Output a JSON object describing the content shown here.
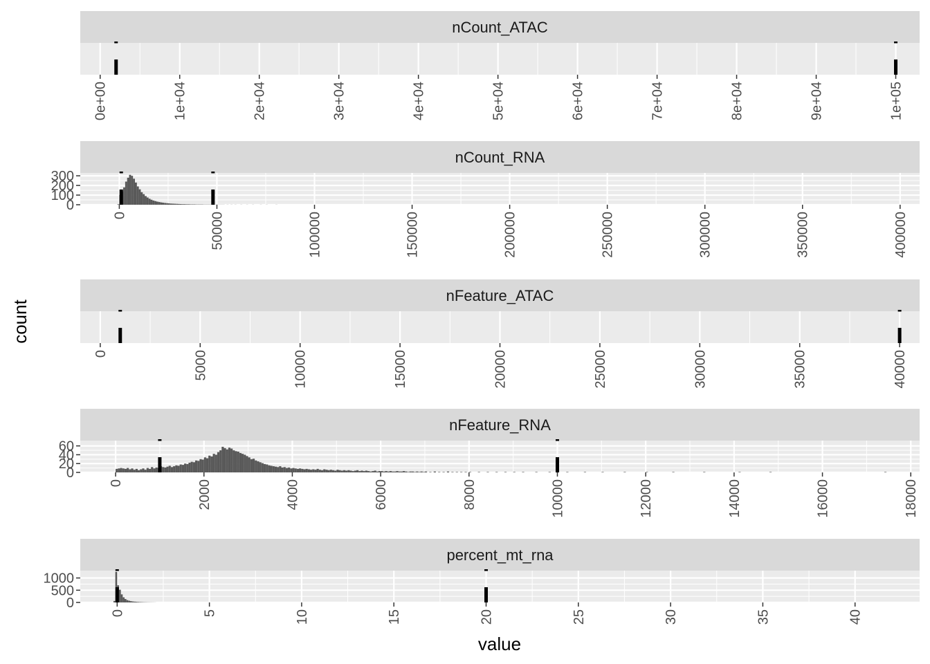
{
  "chart_data": {
    "type": "histogram",
    "xlabel": "value",
    "ylabel": "count",
    "layout": "facet_wrap, 1 column, free scales",
    "colors": {
      "panel": "#EBEBEB",
      "strip": "#D9D9D9",
      "grid": "#FFFFFF",
      "bar": "#595959",
      "threshold": "#000000",
      "text": "#4D4D4D"
    },
    "facets": [
      {
        "name": "nCount_ATAC",
        "xlim": [
          -2500,
          103000
        ],
        "ylim": [
          0,
          1
        ],
        "x_ticks": [
          0,
          10000,
          20000,
          30000,
          40000,
          50000,
          60000,
          70000,
          80000,
          90000,
          100000
        ],
        "x_tick_labels": [
          "0e+00",
          "1e+04",
          "2e+04",
          "3e+04",
          "4e+04",
          "5e+04",
          "6e+04",
          "7e+04",
          "8e+04",
          "9e+04",
          "1e+05"
        ],
        "y_ticks": [],
        "y_tick_labels": [],
        "thresholds": [
          2000,
          100000
        ],
        "bins": []
      },
      {
        "name": "nCount_RNA",
        "xlim": [
          -20000,
          410000
        ],
        "ylim": [
          0,
          330
        ],
        "x_ticks": [
          0,
          50000,
          100000,
          150000,
          200000,
          250000,
          300000,
          350000,
          400000
        ],
        "x_tick_labels": [
          "0",
          "50000",
          "100000",
          "150000",
          "200000",
          "250000",
          "300000",
          "350000",
          "400000"
        ],
        "y_ticks": [
          0,
          100,
          200,
          300
        ],
        "y_tick_labels": [
          "0",
          "100",
          "200",
          "300"
        ],
        "thresholds": [
          1000,
          48000
        ],
        "bin_width": 1000,
        "bins": [
          [
            -1000,
            5
          ],
          [
            0,
            100
          ],
          [
            1000,
            140
          ],
          [
            2000,
            180
          ],
          [
            3000,
            240
          ],
          [
            4000,
            280
          ],
          [
            5000,
            310
          ],
          [
            6000,
            300
          ],
          [
            7000,
            270
          ],
          [
            8000,
            230
          ],
          [
            9000,
            190
          ],
          [
            10000,
            160
          ],
          [
            11000,
            130
          ],
          [
            12000,
            110
          ],
          [
            13000,
            90
          ],
          [
            14000,
            75
          ],
          [
            15000,
            62
          ],
          [
            16000,
            52
          ],
          [
            17000,
            44
          ],
          [
            18000,
            38
          ],
          [
            19000,
            32
          ],
          [
            20000,
            28
          ],
          [
            21000,
            24
          ],
          [
            22000,
            21
          ],
          [
            23000,
            18
          ],
          [
            24000,
            16
          ],
          [
            25000,
            14
          ],
          [
            26000,
            12
          ],
          [
            27000,
            11
          ],
          [
            28000,
            10
          ],
          [
            29000,
            9
          ],
          [
            30000,
            8
          ],
          [
            31000,
            7
          ],
          [
            32000,
            6
          ],
          [
            33000,
            6
          ],
          [
            34000,
            5
          ],
          [
            35000,
            5
          ],
          [
            36000,
            4
          ],
          [
            37000,
            4
          ],
          [
            38000,
            4
          ],
          [
            39000,
            3
          ],
          [
            40000,
            3
          ],
          [
            41000,
            3
          ],
          [
            42000,
            3
          ],
          [
            43000,
            2
          ],
          [
            44000,
            2
          ],
          [
            45000,
            2
          ],
          [
            46000,
            2
          ],
          [
            47000,
            2
          ],
          [
            48000,
            2
          ],
          [
            49000,
            1
          ],
          [
            50000,
            1
          ],
          [
            51000,
            1
          ],
          [
            52000,
            1
          ],
          [
            53000,
            1
          ],
          [
            55000,
            1
          ],
          [
            57000,
            1
          ],
          [
            59000,
            1
          ],
          [
            62000,
            1
          ],
          [
            65000,
            1
          ],
          [
            68000,
            1
          ],
          [
            72000,
            1
          ],
          [
            75000,
            1
          ],
          [
            80000,
            1
          ]
        ]
      },
      {
        "name": "nFeature_ATAC",
        "xlim": [
          -1000,
          41000
        ],
        "ylim": [
          0,
          1
        ],
        "x_ticks": [
          0,
          5000,
          10000,
          15000,
          20000,
          25000,
          30000,
          35000,
          40000
        ],
        "x_tick_labels": [
          "0",
          "5000",
          "10000",
          "15000",
          "20000",
          "25000",
          "30000",
          "35000",
          "40000"
        ],
        "y_ticks": [],
        "y_tick_labels": [],
        "thresholds": [
          1000,
          40000
        ],
        "bins": []
      },
      {
        "name": "nFeature_RNA",
        "xlim": [
          -800,
          18200
        ],
        "ylim": [
          0,
          72
        ],
        "x_ticks": [
          0,
          2000,
          4000,
          6000,
          8000,
          10000,
          12000,
          14000,
          16000,
          18000
        ],
        "x_tick_labels": [
          "0",
          "2000",
          "4000",
          "6000",
          "8000",
          "10000",
          "12000",
          "14000",
          "16000",
          "18000"
        ],
        "y_ticks": [
          0,
          20,
          40,
          60
        ],
        "y_tick_labels": [
          "0",
          "20",
          "40",
          "60"
        ],
        "thresholds": [
          1000,
          10000
        ],
        "bin_width": 50,
        "bins": [
          [
            0,
            8
          ],
          [
            50,
            9
          ],
          [
            100,
            10
          ],
          [
            150,
            9
          ],
          [
            200,
            8
          ],
          [
            250,
            10
          ],
          [
            300,
            7
          ],
          [
            350,
            9
          ],
          [
            400,
            6
          ],
          [
            450,
            8
          ],
          [
            500,
            5
          ],
          [
            550,
            7
          ],
          [
            600,
            9
          ],
          [
            650,
            6
          ],
          [
            700,
            10
          ],
          [
            750,
            8
          ],
          [
            800,
            12
          ],
          [
            850,
            9
          ],
          [
            900,
            11
          ],
          [
            950,
            10
          ],
          [
            1000,
            14
          ],
          [
            1050,
            12
          ],
          [
            1100,
            11
          ],
          [
            1150,
            13
          ],
          [
            1200,
            15
          ],
          [
            1250,
            12
          ],
          [
            1300,
            14
          ],
          [
            1350,
            16
          ],
          [
            1400,
            15
          ],
          [
            1450,
            18
          ],
          [
            1500,
            17
          ],
          [
            1550,
            20
          ],
          [
            1600,
            19
          ],
          [
            1650,
            22
          ],
          [
            1700,
            24
          ],
          [
            1750,
            23
          ],
          [
            1800,
            27
          ],
          [
            1850,
            26
          ],
          [
            1900,
            30
          ],
          [
            1950,
            29
          ],
          [
            2000,
            34
          ],
          [
            2050,
            32
          ],
          [
            2100,
            38
          ],
          [
            2150,
            36
          ],
          [
            2200,
            42
          ],
          [
            2250,
            40
          ],
          [
            2300,
            46
          ],
          [
            2350,
            50
          ],
          [
            2400,
            58
          ],
          [
            2450,
            55
          ],
          [
            2500,
            52
          ],
          [
            2550,
            56
          ],
          [
            2600,
            54
          ],
          [
            2650,
            50
          ],
          [
            2700,
            48
          ],
          [
            2750,
            47
          ],
          [
            2800,
            44
          ],
          [
            2850,
            42
          ],
          [
            2900,
            40
          ],
          [
            2950,
            37
          ],
          [
            3000,
            34
          ],
          [
            3050,
            30
          ],
          [
            3100,
            31
          ],
          [
            3150,
            27
          ],
          [
            3200,
            25
          ],
          [
            3250,
            23
          ],
          [
            3300,
            21
          ],
          [
            3350,
            19
          ],
          [
            3400,
            18
          ],
          [
            3450,
            16
          ],
          [
            3500,
            15
          ],
          [
            3550,
            14
          ],
          [
            3600,
            13
          ],
          [
            3650,
            12
          ],
          [
            3700,
            14
          ],
          [
            3750,
            11
          ],
          [
            3800,
            12
          ],
          [
            3850,
            10
          ],
          [
            3900,
            11
          ],
          [
            3950,
            9
          ],
          [
            4000,
            10
          ],
          [
            4050,
            9
          ],
          [
            4100,
            8
          ],
          [
            4150,
            9
          ],
          [
            4200,
            8
          ],
          [
            4250,
            7
          ],
          [
            4300,
            8
          ],
          [
            4350,
            7
          ],
          [
            4400,
            6
          ],
          [
            4450,
            7
          ],
          [
            4500,
            6
          ],
          [
            4550,
            8
          ],
          [
            4600,
            6
          ],
          [
            4650,
            5
          ],
          [
            4700,
            7
          ],
          [
            4750,
            6
          ],
          [
            4800,
            5
          ],
          [
            4850,
            6
          ],
          [
            4900,
            5
          ],
          [
            4950,
            4
          ],
          [
            5000,
            6
          ],
          [
            5050,
            5
          ],
          [
            5100,
            4
          ],
          [
            5150,
            5
          ],
          [
            5200,
            4
          ],
          [
            5250,
            5
          ],
          [
            5300,
            4
          ],
          [
            5350,
            3
          ],
          [
            5400,
            4
          ],
          [
            5450,
            5
          ],
          [
            5500,
            3
          ],
          [
            5550,
            4
          ],
          [
            5600,
            3
          ],
          [
            5650,
            4
          ],
          [
            5700,
            3
          ],
          [
            5750,
            2
          ],
          [
            5800,
            3
          ],
          [
            5850,
            4
          ],
          [
            5900,
            2
          ],
          [
            5950,
            3
          ],
          [
            6000,
            3
          ],
          [
            6050,
            2
          ],
          [
            6100,
            3
          ],
          [
            6150,
            2
          ],
          [
            6200,
            3
          ],
          [
            6250,
            2
          ],
          [
            6300,
            2
          ],
          [
            6350,
            3
          ],
          [
            6400,
            2
          ],
          [
            6450,
            2
          ],
          [
            6500,
            3
          ],
          [
            6550,
            2
          ],
          [
            6600,
            1
          ],
          [
            6650,
            2
          ],
          [
            6700,
            2
          ],
          [
            6750,
            1
          ],
          [
            6800,
            2
          ],
          [
            6850,
            1
          ],
          [
            6900,
            2
          ],
          [
            6950,
            1
          ],
          [
            7000,
            2
          ],
          [
            7100,
            1
          ],
          [
            7200,
            2
          ],
          [
            7300,
            1
          ],
          [
            7400,
            1
          ],
          [
            7500,
            2
          ],
          [
            7600,
            1
          ],
          [
            7700,
            1
          ],
          [
            7800,
            1
          ],
          [
            7900,
            1
          ],
          [
            8000,
            1
          ],
          [
            8200,
            1
          ],
          [
            8400,
            1
          ],
          [
            8600,
            1
          ],
          [
            8800,
            1
          ],
          [
            9000,
            1
          ],
          [
            9200,
            1
          ],
          [
            9500,
            1
          ],
          [
            9800,
            1
          ],
          [
            10200,
            1
          ],
          [
            10600,
            1
          ],
          [
            11000,
            1
          ],
          [
            11500,
            1
          ],
          [
            12000,
            1
          ],
          [
            12600,
            1
          ],
          [
            13300,
            1
          ],
          [
            14100,
            1
          ],
          [
            14800,
            1
          ],
          [
            17400,
            1
          ]
        ]
      },
      {
        "name": "percent_mt_rna",
        "xlim": [
          -2,
          43.5
        ],
        "ylim": [
          0,
          1300
        ],
        "x_ticks": [
          0,
          5,
          10,
          15,
          20,
          25,
          30,
          35,
          40
        ],
        "x_tick_labels": [
          "0",
          "5",
          "10",
          "15",
          "20",
          "25",
          "30",
          "35",
          "40"
        ],
        "y_ticks": [
          0,
          500,
          1000
        ],
        "y_tick_labels": [
          "0",
          "500",
          "1000"
        ],
        "thresholds": [
          0,
          20
        ],
        "bin_width": 0.1,
        "bins": [
          [
            -0.2,
            60
          ],
          [
            -0.1,
            1250
          ],
          [
            0,
            700
          ],
          [
            0.1,
            520
          ],
          [
            0.2,
            330
          ],
          [
            0.3,
            210
          ],
          [
            0.4,
            140
          ],
          [
            0.5,
            95
          ],
          [
            0.6,
            70
          ],
          [
            0.7,
            52
          ],
          [
            0.8,
            40
          ],
          [
            0.9,
            32
          ],
          [
            1.0,
            26
          ],
          [
            1.1,
            21
          ],
          [
            1.2,
            17
          ],
          [
            1.3,
            14
          ],
          [
            1.4,
            11
          ],
          [
            1.5,
            9
          ],
          [
            1.6,
            7
          ],
          [
            1.7,
            6
          ],
          [
            1.8,
            5
          ],
          [
            1.9,
            4
          ],
          [
            2.0,
            3
          ]
        ]
      }
    ]
  }
}
